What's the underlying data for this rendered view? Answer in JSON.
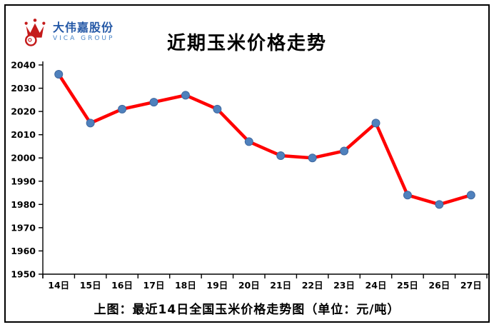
{
  "header": {
    "title": "近期玉米价格走势",
    "logo": {
      "brand_cn": "大伟嘉股份",
      "brand_en": "VICA GROUP",
      "crown_color": "#c41a1a",
      "brand_color": "#2458a6"
    }
  },
  "caption": "上图：最近14日全国玉米价格走势图（单位：元/吨）",
  "chart_data": {
    "type": "line",
    "title": "近期玉米价格走势",
    "categories": [
      "14日",
      "15日",
      "16日",
      "17日",
      "18日",
      "19日",
      "20日",
      "21日",
      "22日",
      "23日",
      "24日",
      "25日",
      "26日",
      "27日"
    ],
    "series": [
      {
        "name": "全国玉米价格",
        "values": [
          2036,
          2015,
          2021,
          2024,
          2027,
          2021,
          2007,
          2001,
          2000,
          2003,
          2015,
          1984,
          1980,
          1984
        ]
      }
    ],
    "xlabel": "",
    "ylabel": "",
    "unit": "元/吨",
    "ylim": [
      1950,
      2040
    ],
    "ytick_step": 10,
    "grid": false,
    "legend_position": "none",
    "line_color": "#ff0000",
    "marker_color": "#4f81bd",
    "marker_edge_color": "#3f689f",
    "axis_color": "#000000"
  }
}
